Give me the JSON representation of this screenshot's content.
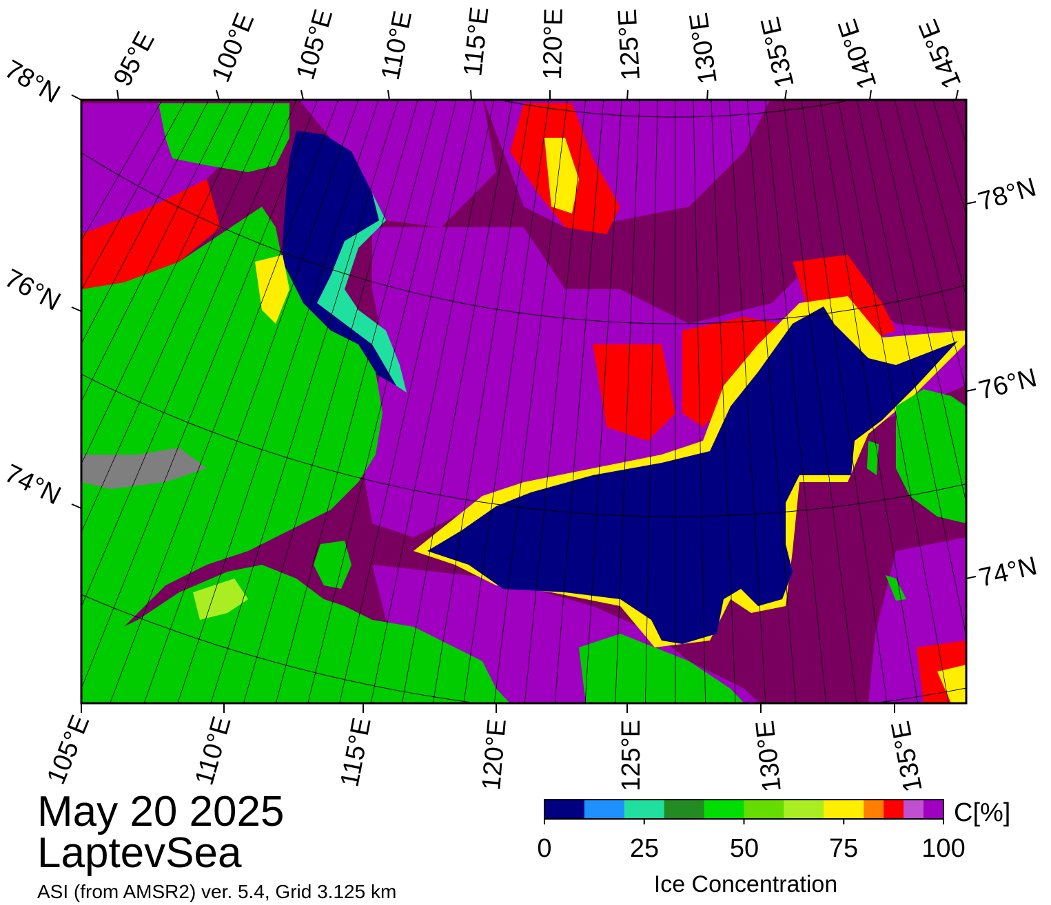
{
  "map": {
    "date": "May 20 2025",
    "region": "LaptevSea",
    "source": "ASI (from AMSR2) ver. 5.4,  Grid 3.125 km",
    "top_lon_labels": [
      "95°E",
      "100°E",
      "105°E",
      "110°E",
      "115°E",
      "120°E",
      "125°E",
      "130°E",
      "135°E",
      "140°E",
      "145°E"
    ],
    "bottom_lon_labels": [
      "105°E",
      "110°E",
      "115°E",
      "120°E",
      "125°E",
      "130°E",
      "135°E"
    ],
    "left_lat_labels": [
      "78°N",
      "76°N",
      "74°N"
    ],
    "right_lat_labels": [
      "78°N",
      "76°N",
      "74°N"
    ],
    "colors": {
      "land": "#00cc00",
      "land_gray": "#7f7f7f",
      "open_water": "#000080",
      "ice_100": "#7a0060",
      "ice_95": "#a000c0",
      "ice_90": "#b048d0",
      "ice_85": "#ff0000",
      "ice_80": "#ff8000",
      "ice_75": "#ffee00"
    }
  },
  "colorbar": {
    "title": "Ice Concentration",
    "unit": "C[%]",
    "tick_labels": [
      "0",
      "25",
      "50",
      "75",
      "100"
    ],
    "tick_values": [
      0,
      25,
      50,
      75,
      100
    ],
    "bins": [
      {
        "from": 0,
        "to": 10,
        "color": "#000080"
      },
      {
        "from": 10,
        "to": 20,
        "color": "#1e90ff"
      },
      {
        "from": 20,
        "to": 30,
        "color": "#20e0a0"
      },
      {
        "from": 30,
        "to": 40,
        "color": "#228b22"
      },
      {
        "from": 40,
        "to": 50,
        "color": "#00dd00"
      },
      {
        "from": 50,
        "to": 60,
        "color": "#66dd00"
      },
      {
        "from": 60,
        "to": 70,
        "color": "#aaee22"
      },
      {
        "from": 70,
        "to": 80,
        "color": "#ffee00"
      },
      {
        "from": 80,
        "to": 85,
        "color": "#ff8000"
      },
      {
        "from": 85,
        "to": 90,
        "color": "#ff0000"
      },
      {
        "from": 90,
        "to": 95,
        "color": "#c050d0"
      },
      {
        "from": 95,
        "to": 100,
        "color": "#a000c0"
      }
    ]
  }
}
